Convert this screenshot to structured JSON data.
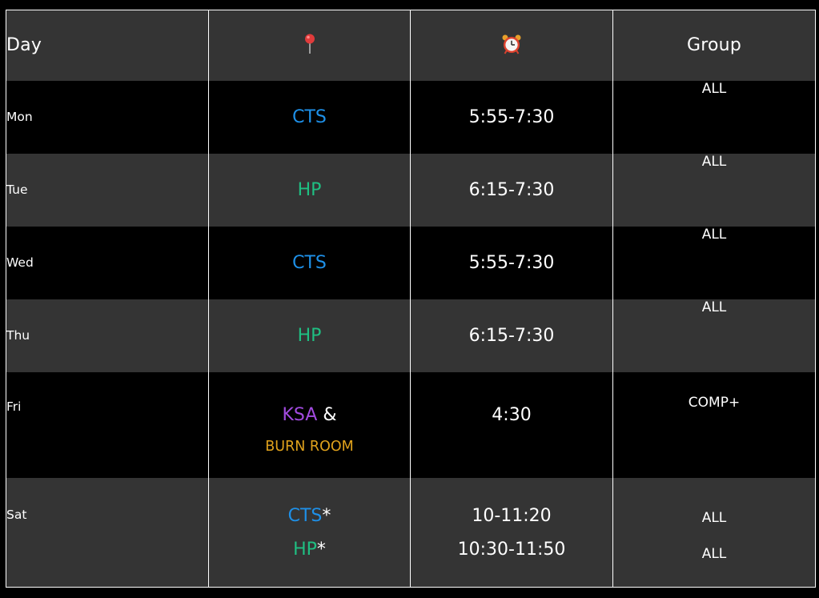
{
  "header": {
    "day": "Day",
    "location_icon": "round-pushpin-icon",
    "time_icon": "alarm-clock-icon",
    "group": "Group"
  },
  "colors": {
    "cts": "#1e90e8",
    "hp": "#1fbf82",
    "ksa": "#a24be0",
    "burn_room": "#e0a21c"
  },
  "rows": [
    {
      "day": "Mon",
      "location": "CTS",
      "time": "5:55-7:30",
      "group": "ALL"
    },
    {
      "day": "Tue",
      "location": "HP",
      "time": "6:15-7:30",
      "group": "ALL"
    },
    {
      "day": "Wed",
      "location": "CTS",
      "time": "5:55-7:30",
      "group": "ALL"
    },
    {
      "day": "Thu",
      "location": "HP",
      "time": "6:15-7:30",
      "group": "ALL"
    },
    {
      "day": "Fri",
      "location_primary": "KSA",
      "location_joiner": "&",
      "location_secondary": "BURN ROOM",
      "time": "4:30",
      "group": "COMP+"
    },
    {
      "day": "Sat",
      "sessions": [
        {
          "location": "CTS",
          "marker": "*",
          "time": "10-11:20",
          "group": "ALL"
        },
        {
          "location": "HP",
          "marker": "*",
          "time": "10:30-11:50",
          "group": "ALL"
        }
      ]
    }
  ]
}
